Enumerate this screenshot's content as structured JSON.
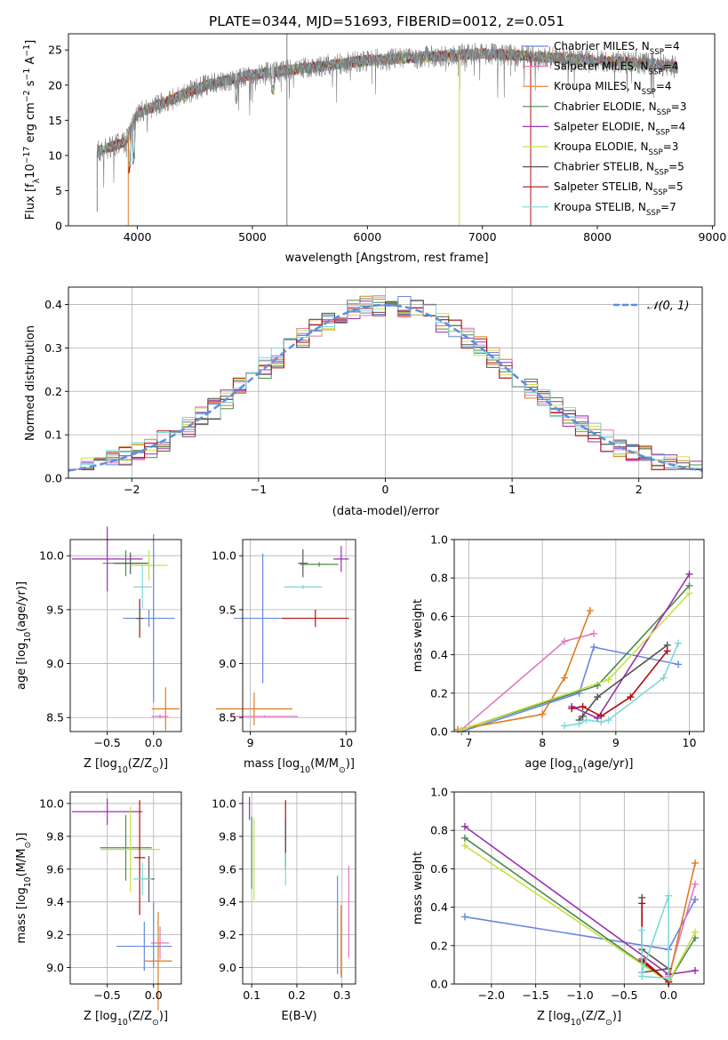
{
  "colors": {
    "Chabrier MILES": "#6688dd",
    "Salpeter MILES": "#e377c2",
    "Kroupa MILES": "#e07b20",
    "Chabrier ELODIE": "#4c8c4c",
    "Salpeter ELODIE": "#9b30b0",
    "Kroupa ELODIE": "#c8e043",
    "Chabrier STELIB": "#555555",
    "Salpeter STELIB": "#b01010",
    "Kroupa STELIB": "#7fd8d8",
    "data_spectrum": "#808080",
    "normal_curve": "#5b8fe0",
    "grid": "#b0b0b0"
  },
  "chart_data": [
    {
      "id": "spectrum",
      "type": "line",
      "title": "PLATE=0344, MJD=51693, FIBERID=0012, z=0.051",
      "xlabel": "wavelength [Angstrom, rest frame]",
      "ylabel": "Flux [f_λ10^-17 erg cm^-2 s^-1 A^-1]",
      "xlim": [
        3400,
        9020
      ],
      "ylim": [
        0,
        27.3
      ],
      "xticks": [
        "4000",
        "5000",
        "6000",
        "7000",
        "8000",
        "9000"
      ],
      "yticks": [
        "0",
        "5",
        "10",
        "15",
        "20",
        "25"
      ],
      "grid": false,
      "legend_position": "top-right",
      "legend": [
        "Chabrier MILES, N_SSP=4",
        "Salpeter MILES, N_SSP=4",
        "Kroupa MILES, N_SSP=4",
        "Chabrier ELODIE, N_SSP=3",
        "Salpeter ELODIE, N_SSP=4",
        "Kroupa ELODIE, N_SSP=3",
        "Chabrier STELIB, N_SSP=5",
        "Salpeter STELIB, N_SSP=5",
        "Kroupa STELIB, N_SSP=7"
      ],
      "continuum": [
        [
          3650,
          10.5
        ],
        [
          3900,
          12
        ],
        [
          4000,
          16
        ],
        [
          4300,
          18
        ],
        [
          4600,
          20
        ],
        [
          5000,
          21.5
        ],
        [
          5500,
          22.5
        ],
        [
          6000,
          23.5
        ],
        [
          6500,
          24
        ],
        [
          7000,
          24.5
        ],
        [
          7500,
          24
        ],
        [
          8000,
          23.5
        ],
        [
          8500,
          23
        ],
        [
          8700,
          22.5
        ]
      ],
      "data_spikes": [
        [
          5300,
          27.3
        ],
        [
          5300,
          0
        ],
        [
          3650,
          0
        ],
        [
          3920,
          0
        ],
        [
          6800,
          0
        ],
        [
          7420,
          0
        ]
      ]
    },
    {
      "id": "residuals",
      "type": "step",
      "xlabel": "(data-model)/error",
      "ylabel": "Normed distribution",
      "xlim": [
        -2.5,
        2.5
      ],
      "ylim": [
        0,
        0.44
      ],
      "xticks": [
        "−2",
        "−1",
        "0",
        "1",
        "2"
      ],
      "yticks": [
        "0.0",
        "0.1",
        "0.2",
        "0.3",
        "0.4"
      ],
      "grid": true,
      "legend_position": "top-right",
      "legend": [
        "𝒩(0, 1)"
      ],
      "bin_width": 0.1,
      "curve": "normal(0,1)"
    },
    {
      "id": "age-vs-Z",
      "type": "errorbar",
      "xlabel": "Z [log10(Z/Z⊙)]",
      "ylabel": "age  [log10(age/yr)]",
      "xlim": [
        -0.9,
        0.3
      ],
      "ylim": [
        8.37,
        10.15
      ],
      "xticks": [
        "−0.5",
        "0.0"
      ],
      "yticks": [
        "8.5",
        "9.0",
        "9.5",
        "10.0"
      ],
      "grid": true,
      "points": [
        {
          "model": "Salpeter ELODIE",
          "x": -0.5,
          "y": 9.97,
          "xerr": 0.38,
          "yerr": 0.3
        },
        {
          "model": "Chabrier ELODIE",
          "x": -0.3,
          "y": 9.93,
          "xerr": 0.25,
          "yerr": 0.12
        },
        {
          "model": "Chabrier STELIB",
          "x": -0.25,
          "y": 9.93,
          "xerr": 0.18,
          "yerr": 0.1
        },
        {
          "model": "Kroupa ELODIE",
          "x": -0.05,
          "y": 9.91,
          "xerr": 0.2,
          "yerr": 0.14
        },
        {
          "model": "Kroupa STELIB",
          "x": -0.12,
          "y": 9.71,
          "xerr": 0.1,
          "yerr": 0.2
        },
        {
          "model": "Chabrier MILES",
          "x": -0.05,
          "y": 9.42,
          "xerr": 0.28,
          "yerr": 0.08
        },
        {
          "model": "Salpeter STELIB",
          "x": -0.15,
          "y": 9.42,
          "xerr": 0.03,
          "yerr": 0.18
        },
        {
          "model": "Chabrier STELIB",
          "x": -0.15,
          "y": 9.42,
          "xerr": 0.04,
          "yerr": 0.1
        },
        {
          "model": "Chabrier MILES",
          "x": 0.0,
          "y": 9.42,
          "xerr": 0.01,
          "yerr": 0.78
        },
        {
          "model": "Kroupa MILES",
          "x": 0.13,
          "y": 8.58,
          "xerr": 0.15,
          "yerr": 0.2
        },
        {
          "model": "Salpeter MILES",
          "x": 0.07,
          "y": 8.51,
          "xerr": 0.09,
          "yerr": 0.02
        }
      ]
    },
    {
      "id": "age-vs-mass",
      "type": "errorbar",
      "xlabel": "mass [log10(M/M⊙)]",
      "ylabel": "",
      "xlim": [
        8.92,
        10.1
      ],
      "ylim": [
        8.37,
        10.15
      ],
      "xticks": [
        "9",
        "10"
      ],
      "yticks": [
        "8.5",
        "9.0",
        "9.5",
        "10.0"
      ],
      "grid": true,
      "points": [
        {
          "model": "Salpeter ELODIE",
          "x": 9.95,
          "y": 9.97,
          "xerr": 0.08,
          "yerr": 0.12
        },
        {
          "model": "Chabrier STELIB",
          "x": 9.55,
          "y": 9.93,
          "xerr": 0.05,
          "yerr": 0.13
        },
        {
          "model": "Kroupa ELODIE",
          "x": 9.72,
          "y": 9.92,
          "xerr": 0.1,
          "yerr": 0.02
        },
        {
          "model": "Chabrier ELODIE",
          "x": 9.72,
          "y": 9.92,
          "xerr": 0.2,
          "yerr": 0.02
        },
        {
          "model": "Kroupa STELIB",
          "x": 9.55,
          "y": 9.71,
          "xerr": 0.2,
          "yerr": 0.02
        },
        {
          "model": "Chabrier MILES",
          "x": 9.13,
          "y": 9.42,
          "xerr": 0.3,
          "yerr": 0.6
        },
        {
          "model": "Salpeter STELIB",
          "x": 9.68,
          "y": 9.42,
          "xerr": 0.35,
          "yerr": 0.08
        },
        {
          "model": "Kroupa MILES",
          "x": 9.04,
          "y": 8.58,
          "xerr": 0.4,
          "yerr": 0.15
        },
        {
          "model": "Salpeter MILES",
          "x": 9.15,
          "y": 8.51,
          "xerr": 0.35,
          "yerr": 0.01
        }
      ]
    },
    {
      "id": "massweight-vs-age",
      "type": "line",
      "xlabel": "age  [log10(age/yr)]",
      "ylabel": "mass weight",
      "xlim": [
        6.8,
        10.2
      ],
      "ylim": [
        0,
        1.0
      ],
      "xticks": [
        "7",
        "8",
        "9",
        "10"
      ],
      "yticks": [
        "0.0",
        "0.2",
        "0.4",
        "0.6",
        "0.8",
        "1.0"
      ],
      "grid": true,
      "series": [
        {
          "model": "Chabrier MILES",
          "x": [
            6.9,
            8.5,
            8.7,
            9.85
          ],
          "y": [
            0.0,
            0.2,
            0.44,
            0.35
          ]
        },
        {
          "model": "Salpeter MILES",
          "x": [
            6.9,
            8.3,
            8.7
          ],
          "y": [
            0.01,
            0.47,
            0.51
          ]
        },
        {
          "model": "Kroupa MILES",
          "x": [
            6.85,
            8.0,
            8.3,
            8.65
          ],
          "y": [
            0.01,
            0.09,
            0.28,
            0.63
          ]
        },
        {
          "model": "Chabrier ELODIE",
          "x": [
            6.9,
            8.75,
            10.0
          ],
          "y": [
            0.01,
            0.24,
            0.76
          ]
        },
        {
          "model": "Salpeter ELODIE",
          "x": [
            8.4,
            8.75,
            10.0
          ],
          "y": [
            0.13,
            0.07,
            0.82
          ]
        },
        {
          "model": "Kroupa ELODIE",
          "x": [
            6.9,
            8.9,
            10.0
          ],
          "y": [
            0.01,
            0.27,
            0.72
          ]
        },
        {
          "model": "Chabrier STELIB",
          "x": [
            8.5,
            8.55,
            8.75,
            9.7
          ],
          "y": [
            0.06,
            0.08,
            0.18,
            0.45
          ]
        },
        {
          "model": "Salpeter STELIB",
          "x": [
            8.4,
            8.55,
            8.8,
            9.2,
            9.7
          ],
          "y": [
            0.12,
            0.13,
            0.08,
            0.18,
            0.42
          ]
        },
        {
          "model": "Kroupa STELIB",
          "x": [
            8.3,
            8.5,
            8.6,
            8.8,
            8.9,
            9.65,
            9.85
          ],
          "y": [
            0.03,
            0.04,
            0.06,
            0.05,
            0.06,
            0.28,
            0.46
          ]
        }
      ]
    },
    {
      "id": "mass-vs-Z",
      "type": "errorbar",
      "xlabel": "Z [log10(Z/Z⊙)]",
      "ylabel": "mass [log10(M/M⊙)]",
      "xlim": [
        -0.9,
        0.3
      ],
      "ylim": [
        8.9,
        10.07
      ],
      "xticks": [
        "−0.5",
        "0.0"
      ],
      "yticks": [
        "9.0",
        "9.2",
        "9.4",
        "9.6",
        "9.8",
        "10.0"
      ],
      "grid": true,
      "points": [
        {
          "model": "Salpeter ELODIE",
          "x": -0.5,
          "y": 9.95,
          "xerr": 0.38,
          "yerr": 0.08
        },
        {
          "model": "Chabrier ELODIE",
          "x": -0.3,
          "y": 9.73,
          "xerr": 0.28,
          "yerr": 0.2
        },
        {
          "model": "Kroupa ELODIE",
          "x": -0.25,
          "y": 9.72,
          "xerr": 0.32,
          "yerr": 0.26
        },
        {
          "model": "Salpeter STELIB",
          "x": -0.15,
          "y": 9.67,
          "xerr": 0.06,
          "yerr": 0.35
        },
        {
          "model": "Chabrier STELIB",
          "x": -0.05,
          "y": 9.54,
          "xerr": 0.06,
          "yerr": 0.14
        },
        {
          "model": "Kroupa STELIB",
          "x": -0.12,
          "y": 9.54,
          "xerr": 0.1,
          "yerr": 0.1
        },
        {
          "model": "Salpeter MILES",
          "x": 0.07,
          "y": 9.15,
          "xerr": 0.1,
          "yerr": 0.1
        },
        {
          "model": "Chabrier MILES",
          "x": -0.1,
          "y": 9.13,
          "xerr": 0.3,
          "yerr": 0.15
        },
        {
          "model": "Kroupa MILES",
          "x": 0.05,
          "y": 9.04,
          "xerr": 0.15,
          "yerr": 0.3
        },
        {
          "model": "Chabrier MILES",
          "x": 0.0,
          "y": 9.2,
          "xerr": 0.0,
          "yerr": 0.2
        }
      ]
    },
    {
      "id": "mass-vs-EBV",
      "type": "errorbar",
      "xlabel": "E(B-V)",
      "ylabel": "",
      "xlim": [
        0.08,
        0.33
      ],
      "ylim": [
        8.9,
        10.07
      ],
      "xticks": [
        "0.1",
        "0.2",
        "0.3"
      ],
      "yticks": [
        "9.0",
        "9.2",
        "9.4",
        "9.6",
        "9.8",
        "10.0"
      ],
      "grid": true,
      "points": [
        {
          "model": "Salpeter ELODIE",
          "x": 0.095,
          "y": 9.97,
          "xerr": 0,
          "yerr": 0.07
        },
        {
          "model": "Chabrier ELODIE",
          "x": 0.1,
          "y": 9.7,
          "xerr": 0,
          "yerr": 0.22
        },
        {
          "model": "Kroupa ELODIE",
          "x": 0.105,
          "y": 9.66,
          "xerr": 0,
          "yerr": 0.25
        },
        {
          "model": "Salpeter STELIB",
          "x": 0.175,
          "y": 9.82,
          "xerr": 0,
          "yerr": 0.2
        },
        {
          "model": "Chabrier STELIB",
          "x": 0.175,
          "y": 9.75,
          "xerr": 0,
          "yerr": 0.15
        },
        {
          "model": "Kroupa STELIB",
          "x": 0.175,
          "y": 9.6,
          "xerr": 0,
          "yerr": 0.1
        },
        {
          "model": "Chabrier MILES",
          "x": 0.29,
          "y": 9.26,
          "xerr": 0,
          "yerr": 0.3
        },
        {
          "model": "Kroupa MILES",
          "x": 0.298,
          "y": 9.16,
          "xerr": 0,
          "yerr": 0.22
        },
        {
          "model": "Salpeter MILES",
          "x": 0.315,
          "y": 9.34,
          "xerr": 0,
          "yerr": 0.28
        }
      ]
    },
    {
      "id": "massweight-vs-Z",
      "type": "line",
      "xlabel": "Z [log10(Z/Z⊙)]",
      "ylabel": "mass weight",
      "xlim": [
        -2.42,
        0.4
      ],
      "ylim": [
        0,
        1.0
      ],
      "xticks": [
        "−2.0",
        "−1.5",
        "−1.0",
        "−0.5",
        "0.0"
      ],
      "yticks": [
        "0.0",
        "0.2",
        "0.4",
        "0.6",
        "0.8",
        "1.0"
      ],
      "grid": true,
      "series": [
        {
          "model": "Chabrier MILES",
          "x": [
            -2.3,
            0.0,
            0.3
          ],
          "y": [
            0.35,
            0.18,
            0.44
          ]
        },
        {
          "model": "Salpeter MILES",
          "x": [
            0.0,
            0.3
          ],
          "y": [
            0.04,
            0.52
          ]
        },
        {
          "model": "Kroupa MILES",
          "x": [
            0.0,
            0.3
          ],
          "y": [
            0.02,
            0.63
          ]
        },
        {
          "model": "Chabrier ELODIE",
          "x": [
            -2.3,
            0.0,
            0.3
          ],
          "y": [
            0.76,
            0.01,
            0.24
          ]
        },
        {
          "model": "Salpeter ELODIE",
          "x": [
            -2.3,
            0.0,
            0.3
          ],
          "y": [
            0.82,
            0.05,
            0.07
          ]
        },
        {
          "model": "Kroupa ELODIE",
          "x": [
            -2.3,
            0.0,
            0.3
          ],
          "y": [
            0.72,
            0.01,
            0.27
          ]
        },
        {
          "model": "Chabrier STELIB",
          "x": [
            -0.3,
            -0.3,
            0.0,
            -0.3
          ],
          "y": [
            0.45,
            0.18,
            0.08,
            0.06
          ]
        },
        {
          "model": "Salpeter STELIB",
          "x": [
            -0.3,
            -0.3,
            0.0,
            -0.3
          ],
          "y": [
            0.42,
            0.12,
            0.01,
            0.13
          ]
        },
        {
          "model": "Kroupa STELIB",
          "x": [
            -0.3,
            -0.3,
            0.0,
            0.0,
            -0.3
          ],
          "y": [
            0.28,
            0.06,
            0.46,
            0.03,
            0.04
          ]
        }
      ]
    }
  ]
}
